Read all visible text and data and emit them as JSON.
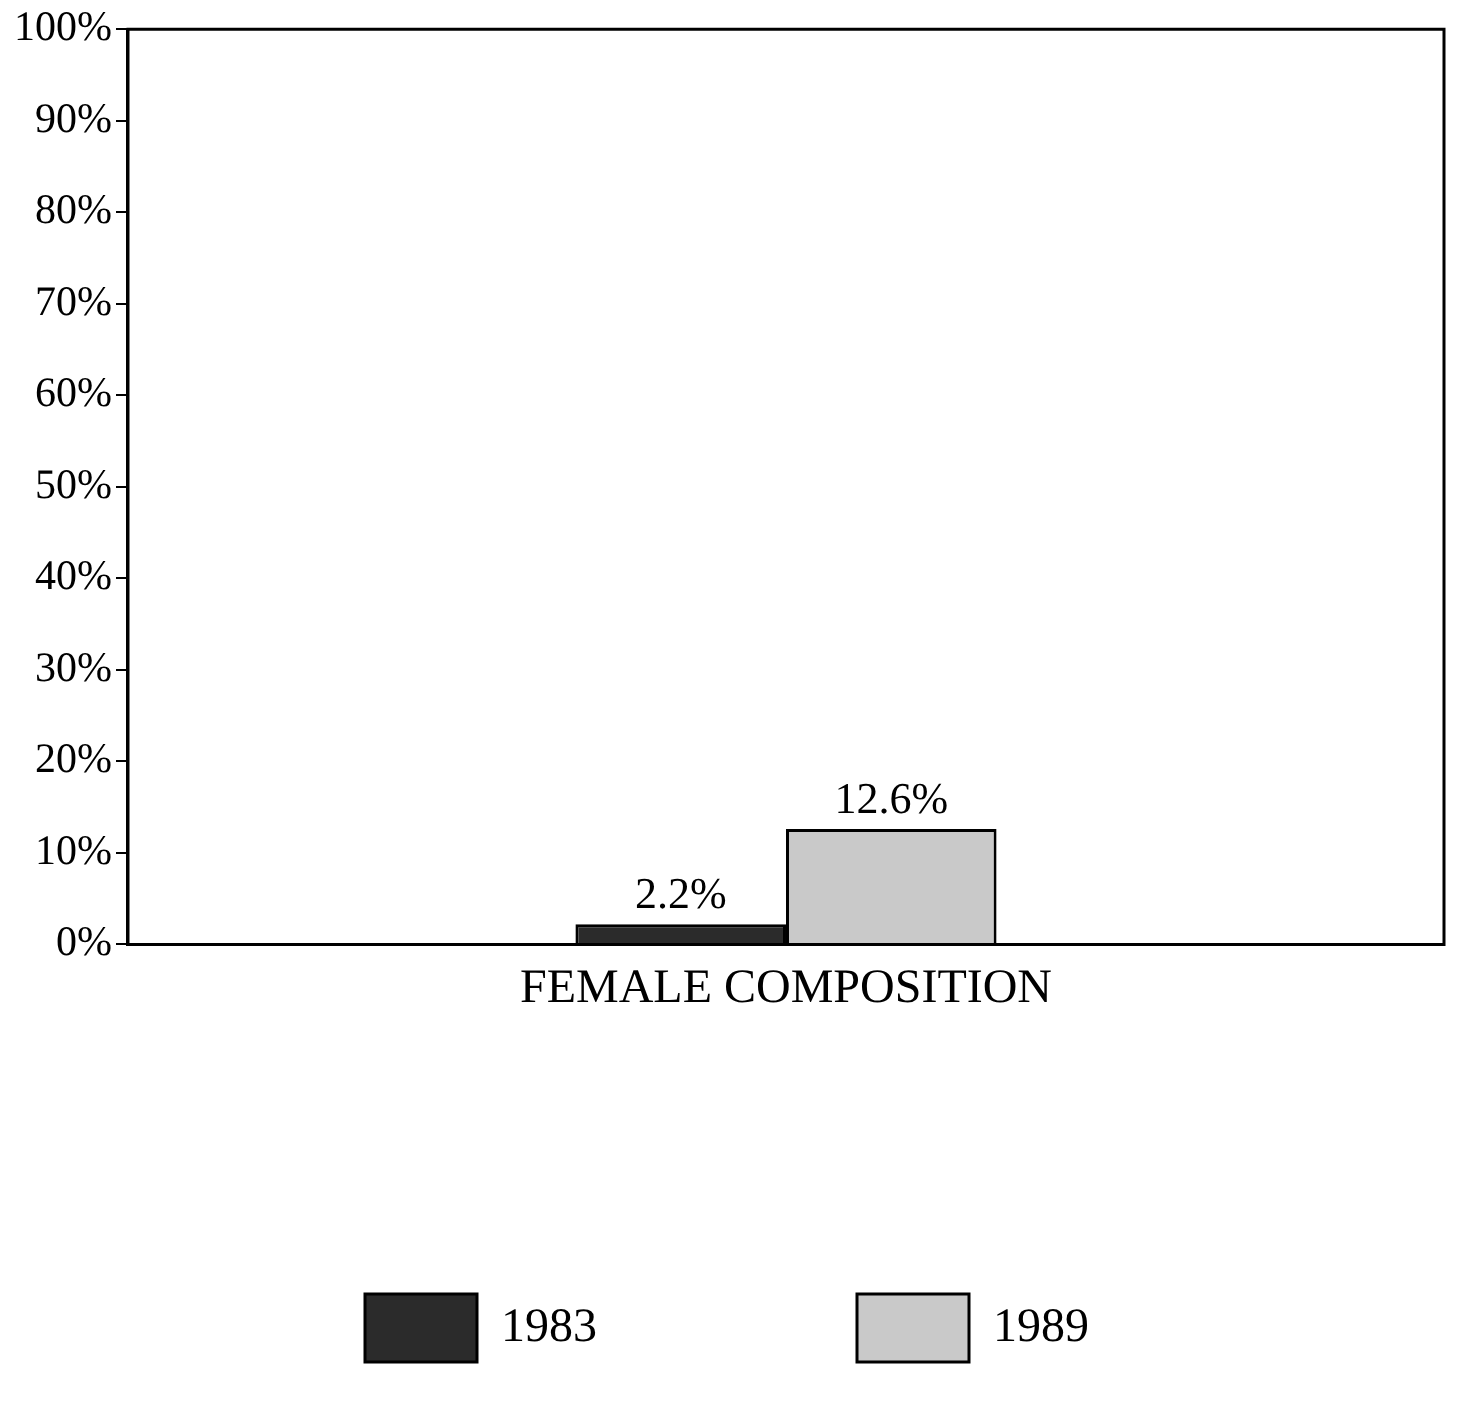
{
  "chart_data": {
    "type": "bar",
    "categories": [
      "FEMALE COMPOSITION"
    ],
    "series": [
      {
        "name": "1983",
        "color": "#2b2b2b",
        "values": [
          2.2
        ],
        "value_labels": [
          "2.2%"
        ]
      },
      {
        "name": "1989",
        "color": "#c9c9c9",
        "values": [
          12.6
        ],
        "value_labels": [
          "12.6%"
        ]
      }
    ],
    "ylim": [
      0,
      100
    ],
    "yticks": [
      {
        "value": 0,
        "label": "0%"
      },
      {
        "value": 10,
        "label": "10%"
      },
      {
        "value": 20,
        "label": "20%"
      },
      {
        "value": 30,
        "label": "30%"
      },
      {
        "value": 40,
        "label": "40%"
      },
      {
        "value": 50,
        "label": "50%"
      },
      {
        "value": 60,
        "label": "60%"
      },
      {
        "value": 70,
        "label": "70%"
      },
      {
        "value": 80,
        "label": "80%"
      },
      {
        "value": 90,
        "label": "90%"
      },
      {
        "value": 100,
        "label": "100%"
      }
    ],
    "grid": false,
    "legend": "bottom"
  }
}
